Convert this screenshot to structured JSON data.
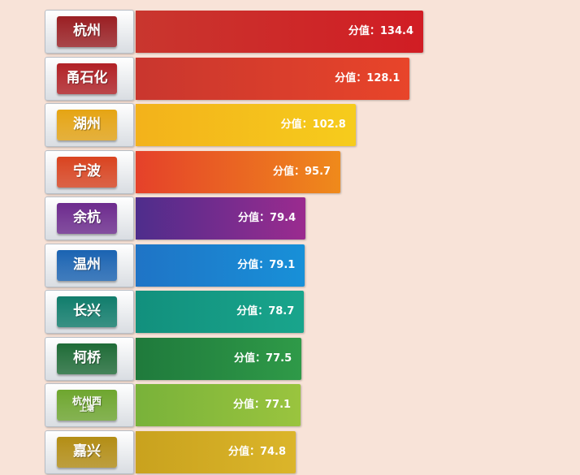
{
  "chart_data": {
    "type": "bar",
    "orientation": "horizontal",
    "value_prefix": "分值：",
    "xlim": [
      0,
      140
    ],
    "categories": [
      {
        "name": "杭州",
        "value": 134.4,
        "color_start": "#c9362e",
        "color_end": "#d11d24",
        "badge": "#9a1e22"
      },
      {
        "name": "甬石化",
        "value": 128.1,
        "color_start": "#c9362e",
        "color_end": "#e8452a",
        "badge": "#b12025"
      },
      {
        "name": "湖州",
        "value": 102.8,
        "color_start": "#f3b21b",
        "color_end": "#f6cc1c",
        "badge": "#e5a413"
      },
      {
        "name": "宁波",
        "value": 95.7,
        "color_start": "#e5412a",
        "color_end": "#ef8a1b",
        "badge": "#d9431f"
      },
      {
        "name": "余杭",
        "value": 79.4,
        "color_start": "#4e2d8c",
        "color_end": "#9b2b8f",
        "badge": "#6c2a8d"
      },
      {
        "name": "温州",
        "value": 79.1,
        "color_start": "#1f74c6",
        "color_end": "#1890d8",
        "badge": "#1a63b2"
      },
      {
        "name": "长兴",
        "value": 78.7,
        "color_start": "#12907d",
        "color_end": "#19a58c",
        "badge": "#0f7c6b"
      },
      {
        "name": "柯桥",
        "value": 77.5,
        "color_start": "#1f7a3c",
        "color_end": "#2f9a48",
        "badge": "#1e6b36"
      },
      {
        "name": "杭州西",
        "sub": "上塘",
        "value": 77.1,
        "color_start": "#79b23a",
        "color_end": "#9ac43e",
        "badge": "#6ea62e"
      },
      {
        "name": "嘉兴",
        "value": 74.8,
        "color_start": "#c9a21e",
        "color_end": "#dbb52a",
        "badge": "#b38d14"
      }
    ]
  }
}
